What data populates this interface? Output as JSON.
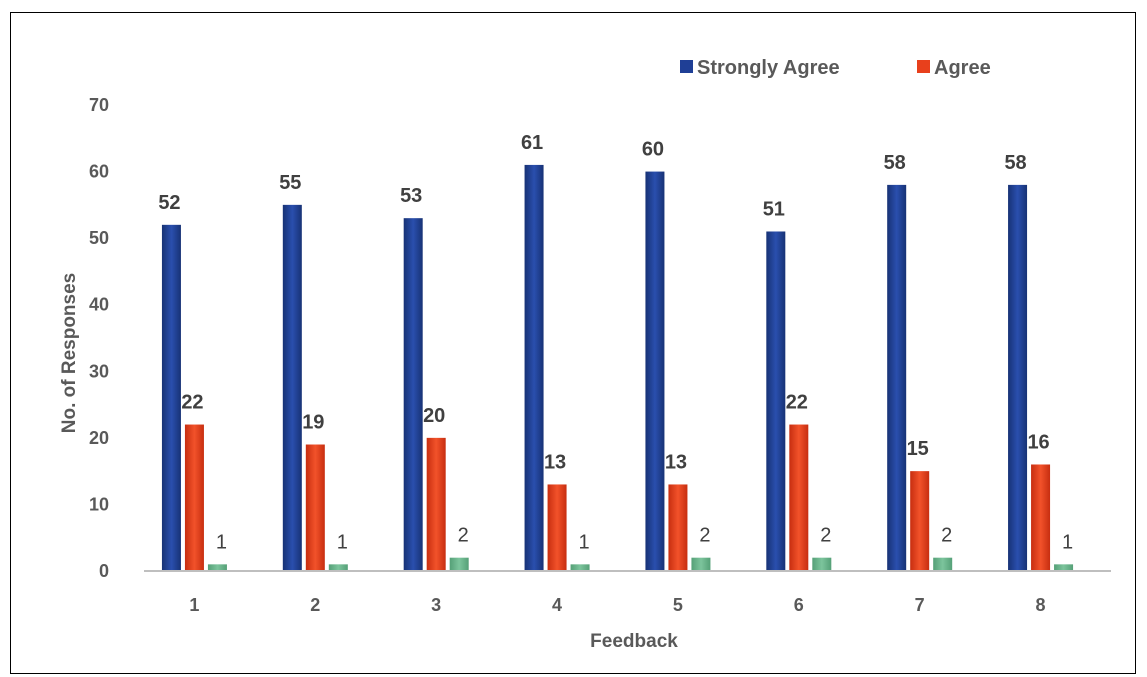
{
  "chart_data": {
    "type": "bar",
    "title": "",
    "xlabel": "Feedback",
    "ylabel": "No. of Responses",
    "categories": [
      "1",
      "2",
      "3",
      "4",
      "5",
      "6",
      "7",
      "8"
    ],
    "ylim": [
      0,
      70
    ],
    "yticks": [
      "0",
      "10",
      "20",
      "30",
      "40",
      "50",
      "60",
      "70"
    ],
    "grid": false,
    "legend_position": "top-right",
    "series": [
      {
        "name": "Strongly Agree",
        "color": "#1F3F96",
        "label_style": "bold",
        "values": [
          52,
          55,
          53,
          61,
          60,
          51,
          58,
          58
        ]
      },
      {
        "name": "Agree",
        "color": "#E8401C",
        "label_style": "bold",
        "values": [
          22,
          19,
          20,
          13,
          13,
          22,
          15,
          16
        ]
      },
      {
        "color": "#6BB38C",
        "label_style": "plain",
        "values": [
          1,
          1,
          2,
          1,
          2,
          2,
          2,
          1
        ]
      }
    ]
  }
}
